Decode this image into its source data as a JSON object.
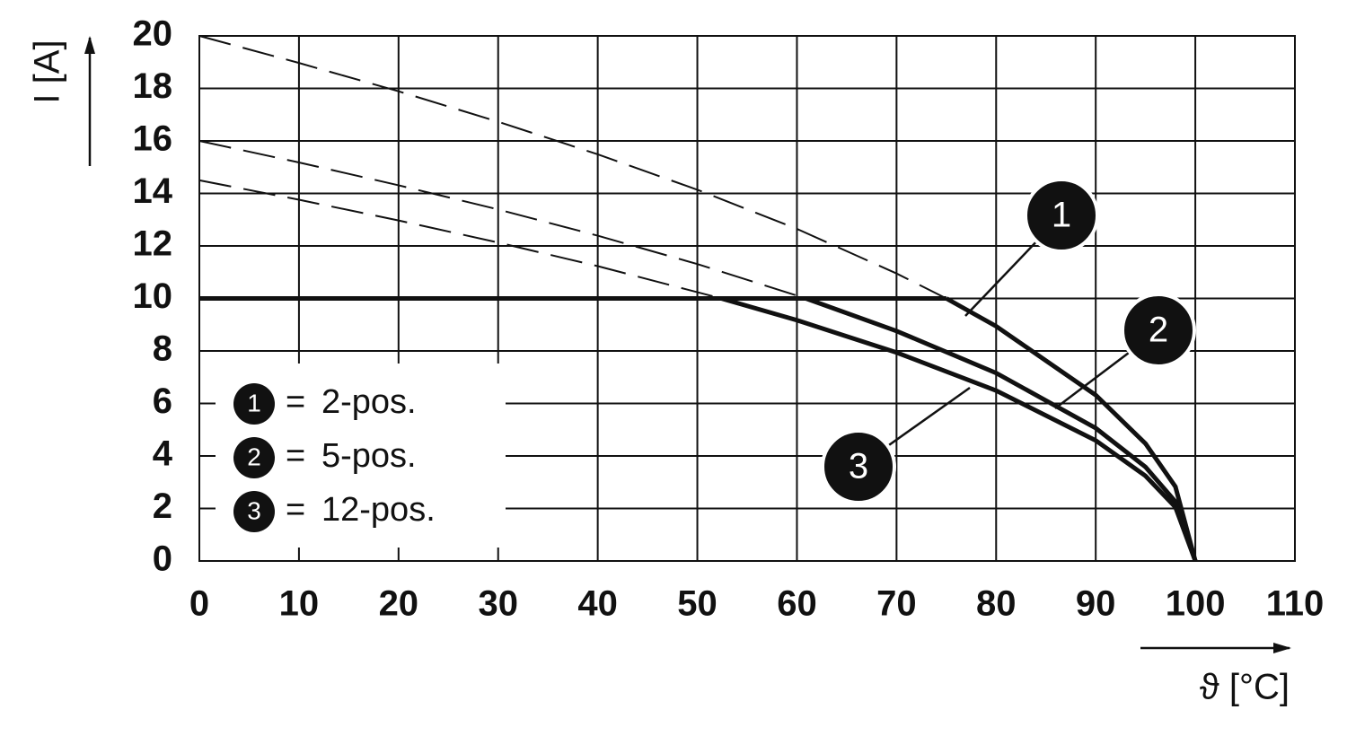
{
  "chart_data": {
    "type": "line",
    "x_label": "ϑ [°C]",
    "y_label": "I [A]",
    "xlim": [
      0,
      110
    ],
    "xticks": [
      0,
      10,
      20,
      30,
      40,
      50,
      60,
      70,
      80,
      90,
      100,
      110
    ],
    "ylim": [
      0,
      20
    ],
    "yticks": [
      0,
      2,
      4,
      6,
      8,
      10,
      12,
      14,
      16,
      18,
      20
    ],
    "grid": true,
    "legend_separator": "=",
    "color": "#111111",
    "limit_line": {
      "x": [
        0,
        75
      ],
      "values": [
        10,
        10
      ]
    },
    "series": [
      {
        "label": "1",
        "name": "2-pos.",
        "x": [
          0,
          10,
          20,
          30,
          40,
          50,
          60,
          70,
          75,
          80,
          90,
          95,
          98,
          100
        ],
        "values": [
          20,
          18.97,
          17.89,
          16.73,
          15.49,
          14.14,
          12.65,
          10.95,
          10,
          8.94,
          6.32,
          4.47,
          2.83,
          0
        ]
      },
      {
        "label": "2",
        "name": "5-pos.",
        "x": [
          0,
          10,
          20,
          30,
          40,
          50,
          60.9,
          70,
          80,
          90,
          95,
          98,
          100
        ],
        "values": [
          16,
          15.18,
          14.31,
          13.39,
          12.39,
          11.31,
          10,
          8.76,
          7.16,
          5.06,
          3.58,
          2.26,
          0
        ]
      },
      {
        "label": "3",
        "name": "12-pos.",
        "x": [
          0,
          10,
          20,
          30,
          40,
          52.4,
          60,
          70,
          80,
          90,
          95,
          98,
          100
        ],
        "values": [
          14.5,
          13.76,
          12.97,
          12.13,
          11.23,
          10,
          9.17,
          7.94,
          6.49,
          4.59,
          3.24,
          2.05,
          0
        ]
      }
    ]
  }
}
